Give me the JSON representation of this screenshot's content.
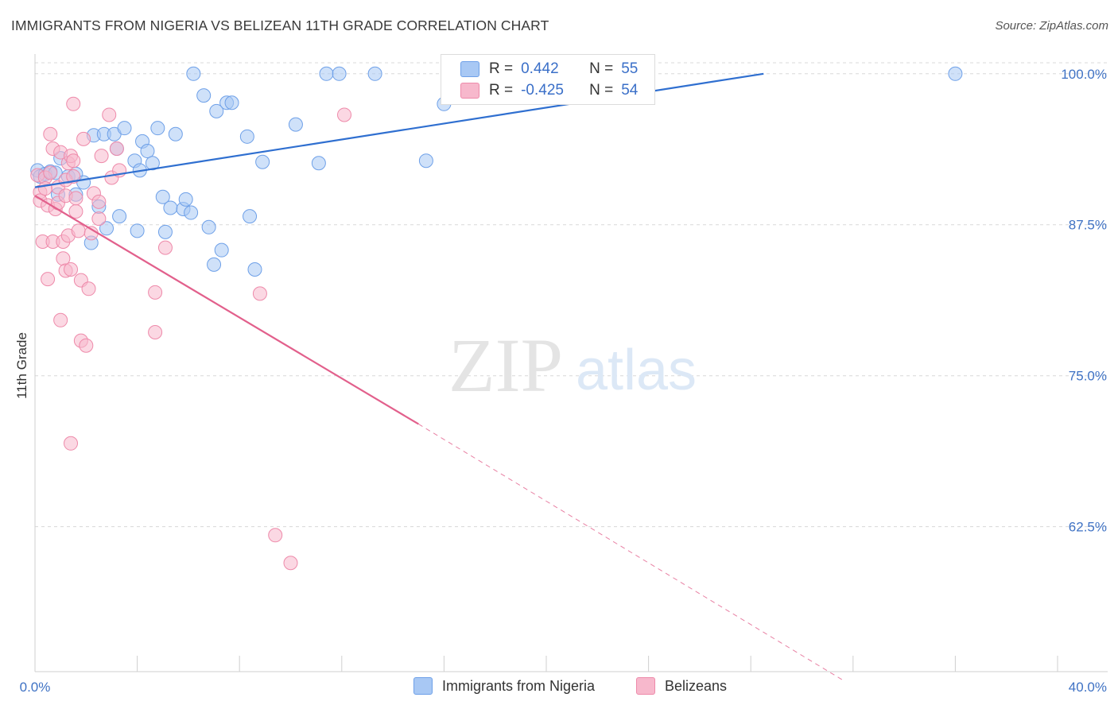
{
  "header": {
    "title": "IMMIGRANTS FROM NIGERIA VS BELIZEAN 11TH GRADE CORRELATION CHART",
    "source": "Source: ZipAtlas.com"
  },
  "watermark": {
    "zip": "ZIP",
    "atlas": "atlas"
  },
  "legend_top": {
    "rows": [
      {
        "r_label": "R =",
        "r_value": "0.442",
        "n_label": "N =",
        "n_value": "55",
        "color": "#a8c8f4"
      },
      {
        "r_label": "R =",
        "r_value": "-0.425",
        "n_label": "N =",
        "n_value": "54",
        "color": "#f7b8cc"
      }
    ]
  },
  "bottom_legend": {
    "items": [
      {
        "label": "Immigrants from Nigeria",
        "color": "#a8c8f4"
      },
      {
        "label": "Belizeans",
        "color": "#f7b8cc"
      }
    ]
  },
  "chart_data": {
    "type": "scatter",
    "title": "IMMIGRANTS FROM NIGERIA VS BELIZEAN 11TH GRADE CORRELATION CHART",
    "xlabel": "",
    "ylabel": "11th Grade",
    "xlim": [
      0,
      40
    ],
    "ylim": [
      50.5,
      101.5
    ],
    "x_tick_labels": [
      "0.0%",
      "40.0%"
    ],
    "y_ticks": [
      62.5,
      75.0,
      87.5,
      100.0
    ],
    "y_tick_labels": [
      "62.5%",
      "75.0%",
      "87.5%",
      "100.0%"
    ],
    "grid": true,
    "legend_position": "top-center",
    "series": [
      {
        "name": "Immigrants from Nigeria",
        "color": "#6ea0e8",
        "fill": "#a8c8f4",
        "r": 0.442,
        "n": 55,
        "trend": {
          "x0": 0.0,
          "y0": 90.6,
          "x1": 28.5,
          "y1": 100.0,
          "style": "solid",
          "color": "#2f6fd0"
        },
        "points": [
          [
            0.1,
            92.0
          ],
          [
            0.2,
            91.5
          ],
          [
            0.4,
            91.7
          ],
          [
            0.6,
            91.9
          ],
          [
            0.8,
            91.8
          ],
          [
            0.9,
            90.0
          ],
          [
            1.0,
            93.0
          ],
          [
            1.3,
            91.5
          ],
          [
            1.6,
            91.7
          ],
          [
            1.6,
            90.0
          ],
          [
            1.9,
            91.0
          ],
          [
            2.2,
            86.0
          ],
          [
            2.3,
            94.9
          ],
          [
            2.5,
            89.0
          ],
          [
            2.7,
            95.0
          ],
          [
            2.8,
            87.2
          ],
          [
            3.1,
            95.0
          ],
          [
            3.2,
            93.8
          ],
          [
            3.3,
            88.2
          ],
          [
            3.5,
            95.5
          ],
          [
            3.9,
            92.8
          ],
          [
            4.0,
            87.0
          ],
          [
            4.1,
            92.0
          ],
          [
            4.2,
            94.4
          ],
          [
            4.4,
            93.6
          ],
          [
            4.6,
            92.6
          ],
          [
            4.8,
            95.5
          ],
          [
            5.0,
            89.8
          ],
          [
            5.1,
            86.9
          ],
          [
            5.3,
            88.9
          ],
          [
            5.5,
            95.0
          ],
          [
            5.8,
            88.8
          ],
          [
            5.9,
            89.6
          ],
          [
            6.1,
            88.5
          ],
          [
            6.2,
            100.0
          ],
          [
            6.6,
            98.2
          ],
          [
            6.8,
            87.3
          ],
          [
            7.0,
            84.2
          ],
          [
            7.1,
            96.9
          ],
          [
            7.3,
            85.4
          ],
          [
            7.5,
            97.6
          ],
          [
            7.7,
            97.6
          ],
          [
            8.3,
            94.8
          ],
          [
            8.4,
            88.2
          ],
          [
            8.6,
            83.8
          ],
          [
            8.9,
            92.7
          ],
          [
            10.2,
            95.8
          ],
          [
            11.1,
            92.6
          ],
          [
            11.4,
            100.0
          ],
          [
            11.9,
            100.0
          ],
          [
            13.3,
            100.0
          ],
          [
            15.3,
            92.8
          ],
          [
            16.0,
            97.5
          ],
          [
            16.6,
            100.0
          ],
          [
            36.0,
            100.0
          ]
        ]
      },
      {
        "name": "Belizeans",
        "color": "#ee8aaa",
        "fill": "#f7b8cc",
        "r": -0.425,
        "n": 54,
        "trend": {
          "x0": 0.0,
          "y0": 89.9,
          "x1": 15.0,
          "y1": 71.0,
          "style": "solid",
          "color": "#e2608c",
          "ext_x1": 31.6,
          "ext_y1": 49.8,
          "ext_style": "dashed"
        },
        "points": [
          [
            0.1,
            91.6
          ],
          [
            0.2,
            90.2
          ],
          [
            0.2,
            89.5
          ],
          [
            0.3,
            86.1
          ],
          [
            0.4,
            91.4
          ],
          [
            0.5,
            89.1
          ],
          [
            0.5,
            83.0
          ],
          [
            0.6,
            91.8
          ],
          [
            0.6,
            95.0
          ],
          [
            0.7,
            86.1
          ],
          [
            0.7,
            93.8
          ],
          [
            0.8,
            88.8
          ],
          [
            0.9,
            89.3
          ],
          [
            0.9,
            90.6
          ],
          [
            1.0,
            79.6
          ],
          [
            1.0,
            93.5
          ],
          [
            1.1,
            84.7
          ],
          [
            1.1,
            86.1
          ],
          [
            1.2,
            89.9
          ],
          [
            1.2,
            91.2
          ],
          [
            1.2,
            83.7
          ],
          [
            1.3,
            92.6
          ],
          [
            1.3,
            86.6
          ],
          [
            1.4,
            69.4
          ],
          [
            1.4,
            93.2
          ],
          [
            1.4,
            83.8
          ],
          [
            1.5,
            97.5
          ],
          [
            1.5,
            92.8
          ],
          [
            1.5,
            91.5
          ],
          [
            1.6,
            88.6
          ],
          [
            1.6,
            89.7
          ],
          [
            1.7,
            87.0
          ],
          [
            1.8,
            82.9
          ],
          [
            1.8,
            77.9
          ],
          [
            1.9,
            94.6
          ],
          [
            2.0,
            77.5
          ],
          [
            2.1,
            82.2
          ],
          [
            2.2,
            86.8
          ],
          [
            2.3,
            90.1
          ],
          [
            2.5,
            88.0
          ],
          [
            2.5,
            89.4
          ],
          [
            2.6,
            93.2
          ],
          [
            2.9,
            96.6
          ],
          [
            3.0,
            91.4
          ],
          [
            3.2,
            93.8
          ],
          [
            3.3,
            92.0
          ],
          [
            4.7,
            81.9
          ],
          [
            4.7,
            78.6
          ],
          [
            5.1,
            85.6
          ],
          [
            8.8,
            81.8
          ],
          [
            9.4,
            61.8
          ],
          [
            10.0,
            59.5
          ],
          [
            12.1,
            96.6
          ],
          [
            0.4,
            90.5
          ]
        ]
      }
    ]
  }
}
